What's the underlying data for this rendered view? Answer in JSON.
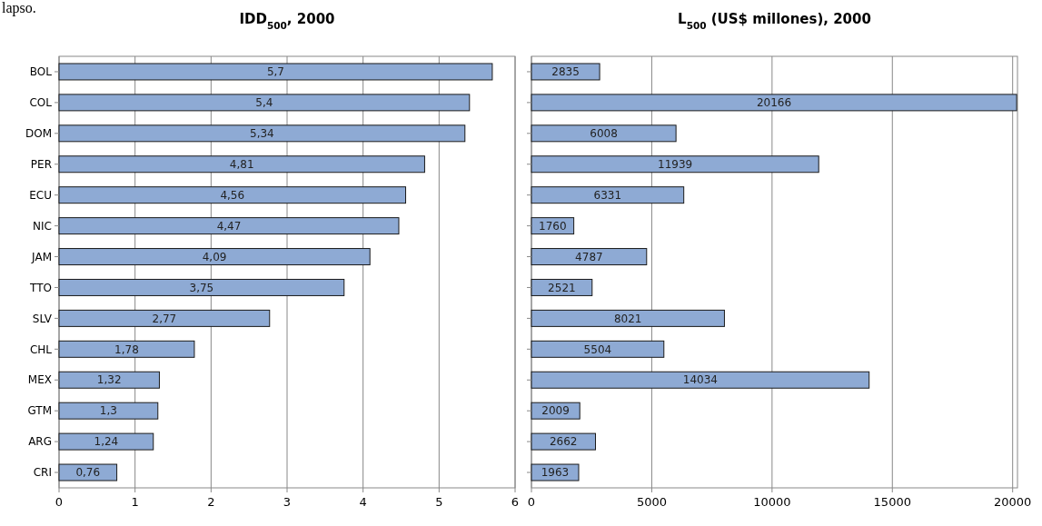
{
  "chart_data": [
    {
      "type": "bar",
      "orientation": "horizontal",
      "title": "IDD$_{500}$, 2000",
      "annotations": [
        "lapso."
      ],
      "categories": [
        "BOL",
        "COL",
        "DOM",
        "PER",
        "ECU",
        "NIC",
        "JAM",
        "TTO",
        "SLV",
        "CHL",
        "MEX",
        "GTM",
        "ARG",
        "CRI"
      ],
      "values": [
        5.7,
        5.4,
        5.34,
        4.81,
        4.56,
        4.47,
        4.09,
        3.75,
        2.77,
        1.78,
        1.32,
        1.3,
        1.24,
        0.76
      ],
      "value_labels": [
        "5,7",
        "5,4",
        "5,34",
        "4,81",
        "4,56",
        "4,47",
        "4,09",
        "3,75",
        "2,77",
        "1,78",
        "1,32",
        "1,3",
        "1,24",
        "0,76"
      ],
      "color": "#8eaad4",
      "xlim": [
        0,
        6
      ],
      "xticks": [
        0,
        1,
        2,
        3,
        4,
        5,
        6
      ],
      "grid": "x"
    },
    {
      "type": "bar",
      "orientation": "horizontal",
      "title": "L$_{500}$ (US$ millones), 2000",
      "categories": [
        null,
        null,
        null,
        null,
        null,
        null,
        null,
        null,
        null,
        null,
        null,
        null,
        null,
        null
      ],
      "values": [
        2835,
        20166,
        6008,
        11939,
        6331,
        1760,
        4787,
        2521,
        8021,
        5504,
        14034,
        2009,
        2662,
        1963
      ],
      "data_labels": true,
      "color": "#8eaad4",
      "xlim": [
        0,
        20200
      ],
      "xticks": [
        0,
        5000,
        10000,
        15000,
        20000
      ],
      "grid": "x"
    }
  ]
}
